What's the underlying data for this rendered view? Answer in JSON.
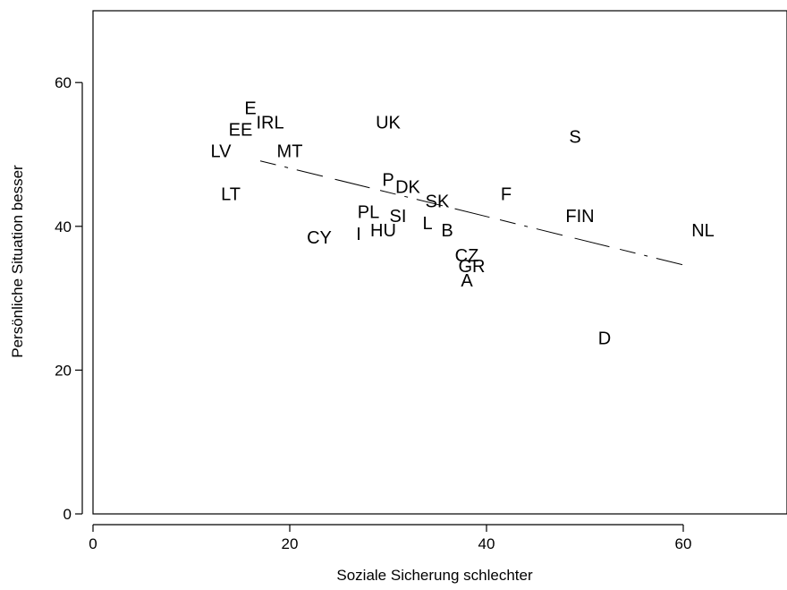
{
  "chart_data": {
    "type": "scatter",
    "title": "",
    "xlabel": "Soziale Sicherung schlechter",
    "ylabel": "Persönliche Situation besser",
    "xlim": [
      0,
      70
    ],
    "ylim": [
      0,
      70
    ],
    "xticks": [
      0,
      20,
      40,
      60
    ],
    "yticks": [
      0,
      20,
      40,
      60
    ],
    "grid": false,
    "legend": "none",
    "marker": "text-label",
    "points": [
      {
        "label": "E",
        "x": 16,
        "y": 56.5
      },
      {
        "label": "IRL",
        "x": 18,
        "y": 54.5
      },
      {
        "label": "EE",
        "x": 15,
        "y": 53.5
      },
      {
        "label": "UK",
        "x": 30,
        "y": 54.5
      },
      {
        "label": "S",
        "x": 49,
        "y": 52.5
      },
      {
        "label": "LV",
        "x": 13,
        "y": 50.5
      },
      {
        "label": "MT",
        "x": 20,
        "y": 50.5
      },
      {
        "label": "P",
        "x": 30,
        "y": 46.5
      },
      {
        "label": "DK",
        "x": 32,
        "y": 45.5
      },
      {
        "label": "LT",
        "x": 14,
        "y": 44.5
      },
      {
        "label": "F",
        "x": 42,
        "y": 44.5
      },
      {
        "label": "SK",
        "x": 35,
        "y": 43.5
      },
      {
        "label": "PL",
        "x": 28,
        "y": 42
      },
      {
        "label": "SI",
        "x": 31,
        "y": 41.5
      },
      {
        "label": "FIN",
        "x": 49.5,
        "y": 41.5
      },
      {
        "label": "L",
        "x": 34,
        "y": 40.5
      },
      {
        "label": "HU",
        "x": 29.5,
        "y": 39.5
      },
      {
        "label": "I",
        "x": 27,
        "y": 39
      },
      {
        "label": "B",
        "x": 36,
        "y": 39.5
      },
      {
        "label": "NL",
        "x": 62,
        "y": 39.5
      },
      {
        "label": "CY",
        "x": 23,
        "y": 38.5
      },
      {
        "label": "CZ",
        "x": 38,
        "y": 36
      },
      {
        "label": "GR",
        "x": 38.5,
        "y": 34.5
      },
      {
        "label": "A",
        "x": 38,
        "y": 32.5
      },
      {
        "label": "D",
        "x": 52,
        "y": 24.5
      }
    ],
    "trend_line": {
      "style": "dashed",
      "x": [
        17,
        61
      ],
      "y": [
        49.1,
        34.3
      ]
    }
  }
}
